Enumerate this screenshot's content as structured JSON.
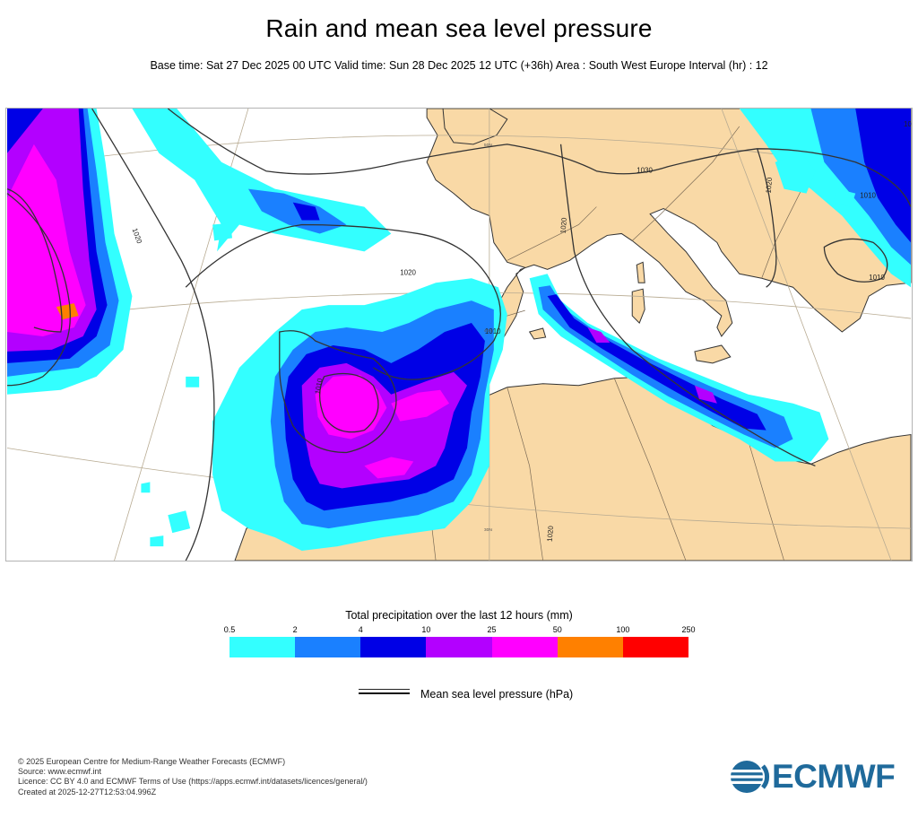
{
  "header": {
    "title": "Rain and mean sea level pressure",
    "subtitle": "Base time: Sat 27 Dec 2025 00 UTC Valid time: Sun 28 Dec 2025 12 UTC (+36h) Area : South West Europe Interval (hr) : 12"
  },
  "map": {
    "isobar_labels": [
      "1020",
      "1030",
      "1020",
      "1020",
      "1010",
      "1010",
      "1020",
      "1010",
      "1020",
      "1020",
      "1010"
    ],
    "graticule_labels": [
      "50N",
      "40N",
      "30N"
    ],
    "colors": {
      "land": "#f9d9a6",
      "sea": "#ffffff",
      "coast": "#333333",
      "isobar": "#333333",
      "graticule": "#b8ab92"
    }
  },
  "legend": {
    "title": "Total precipitation over the last 12 hours (mm)",
    "ticks": [
      "0.5",
      "2",
      "4",
      "10",
      "25",
      "50",
      "100",
      "250"
    ],
    "colors": [
      "#33ffff",
      "#1a80ff",
      "#0000e6",
      "#b300ff",
      "#ff00ff",
      "#ff8000",
      "#ff0000"
    ],
    "pressure_label": "Mean sea level pressure (hPa)"
  },
  "footer": {
    "credits": [
      "© 2025 European Centre for Medium-Range Weather Forecasts (ECMWF)",
      "Source: www.ecmwf.int",
      "Licence: CC BY 4.0 and ECMWF Terms of Use (https://apps.ecmwf.int/datasets/licences/general/)",
      "Created at 2025-12-27T12:53:04.996Z"
    ],
    "logo_text": "ECMWF",
    "logo_color": "#1f6a9b"
  }
}
